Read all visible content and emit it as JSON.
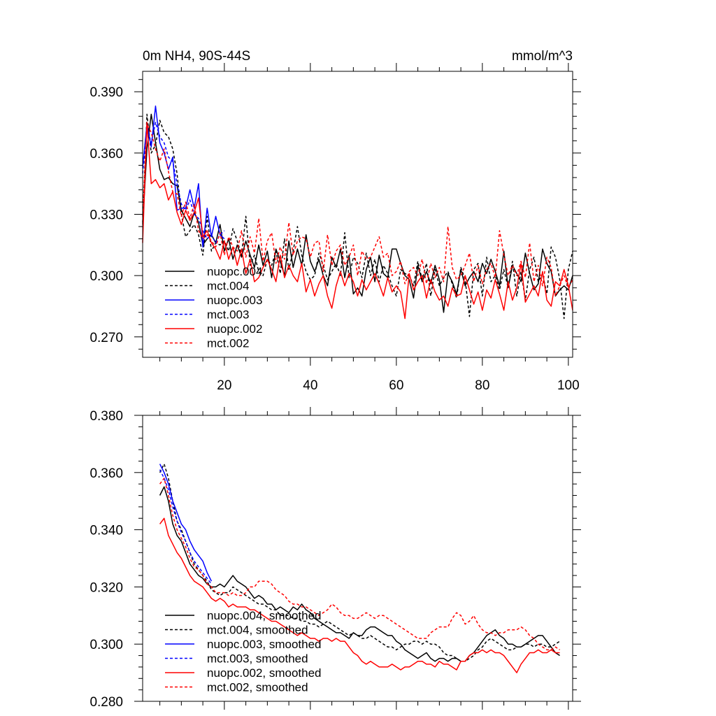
{
  "chart_data": [
    {
      "type": "line",
      "title_left": "0m NH4, 90S-44S",
      "title_right": "mmol/m^3",
      "xlim": [
        1,
        101
      ],
      "ylim": [
        0.26,
        0.4
      ],
      "xticks": [
        20,
        40,
        60,
        80,
        100
      ],
      "xtick_labels": [
        "20",
        "40",
        "60",
        "80",
        "100"
      ],
      "yticks": [
        0.27,
        0.3,
        0.33,
        0.36,
        0.39
      ],
      "ytick_labels": [
        "0.270",
        "0.300",
        "0.330",
        "0.360",
        "0.390"
      ],
      "legend_position": "bottom-left",
      "series": [
        {
          "name": "nuopc.004",
          "color": "#000000",
          "dash": "solid",
          "x_start": 1,
          "values": [
            0.325,
            0.362,
            0.379,
            0.365,
            0.352,
            0.347,
            0.348,
            0.345,
            0.344,
            0.332,
            0.328,
            0.324,
            0.331,
            0.326,
            0.315,
            0.318,
            0.32,
            0.316,
            0.325,
            0.312,
            0.318,
            0.308,
            0.315,
            0.309,
            0.317,
            0.31,
            0.304,
            0.315,
            0.305,
            0.312,
            0.299,
            0.313,
            0.307,
            0.3,
            0.317,
            0.304,
            0.313,
            0.305,
            0.32,
            0.307,
            0.302,
            0.308,
            0.3,
            0.295,
            0.309,
            0.304,
            0.313,
            0.299,
            0.31,
            0.291,
            0.294,
            0.29,
            0.303,
            0.309,
            0.297,
            0.31,
            0.301,
            0.299,
            0.313,
            0.313,
            0.306,
            0.3,
            0.298,
            0.289,
            0.305,
            0.297,
            0.302,
            0.296,
            0.305,
            0.298,
            0.282,
            0.301,
            0.297,
            0.291,
            0.303,
            0.295,
            0.299,
            0.302,
            0.297,
            0.306,
            0.301,
            0.308,
            0.302,
            0.295,
            0.312,
            0.294,
            0.305,
            0.301,
            0.297,
            0.311,
            0.301,
            0.293,
            0.296,
            0.313,
            0.306,
            0.302,
            0.29,
            0.293,
            0.295,
            0.293,
            0.3
          ]
        },
        {
          "name": "mct.004",
          "color": "#000000",
          "dash": "dashed",
          "x_start": 1,
          "values": [
            0.326,
            0.379,
            0.36,
            0.364,
            0.376,
            0.37,
            0.368,
            0.362,
            0.35,
            0.33,
            0.319,
            0.322,
            0.325,
            0.32,
            0.31,
            0.329,
            0.312,
            0.316,
            0.315,
            0.317,
            0.312,
            0.323,
            0.317,
            0.31,
            0.329,
            0.305,
            0.31,
            0.302,
            0.3,
            0.308,
            0.305,
            0.312,
            0.301,
            0.318,
            0.303,
            0.312,
            0.324,
            0.31,
            0.302,
            0.298,
            0.3,
            0.311,
            0.305,
            0.298,
            0.302,
            0.306,
            0.3,
            0.321,
            0.299,
            0.309,
            0.306,
            0.299,
            0.311,
            0.3,
            0.308,
            0.297,
            0.305,
            0.301,
            0.295,
            0.29,
            0.303,
            0.301,
            0.3,
            0.295,
            0.307,
            0.298,
            0.306,
            0.29,
            0.303,
            0.295,
            0.299,
            0.302,
            0.296,
            0.289,
            0.304,
            0.298,
            0.28,
            0.303,
            0.306,
            0.29,
            0.309,
            0.297,
            0.3,
            0.293,
            0.303,
            0.294,
            0.307,
            0.29,
            0.302,
            0.288,
            0.303,
            0.309,
            0.297,
            0.301,
            0.291,
            0.314,
            0.309,
            0.298,
            0.279,
            0.303,
            0.312
          ]
        },
        {
          "name": "nuopc.003",
          "color": "#0000ff",
          "dash": "solid",
          "x_start": 1,
          "values": [
            0.353,
            0.374,
            0.363,
            0.383,
            0.365,
            0.36,
            0.352,
            0.358,
            0.332,
            0.333,
            0.333,
            0.342,
            0.333,
            0.345,
            0.314,
            0.333,
            0.319,
            0.329,
            0.32,
            0.318
          ]
        },
        {
          "name": "mct.003",
          "color": "#0000ff",
          "dash": "dashed",
          "x_start": 1,
          "values": [
            0.35,
            0.372,
            0.365,
            0.375,
            0.368,
            0.365,
            0.358,
            0.356,
            0.345,
            0.335,
            0.332,
            0.337,
            0.33,
            0.328,
            0.322,
            0.318,
            0.32,
            0.316,
            0.32,
            0.322
          ]
        },
        {
          "name": "nuopc.002",
          "color": "#ff0000",
          "dash": "solid",
          "x_start": 1,
          "values": [
            0.316,
            0.375,
            0.345,
            0.347,
            0.343,
            0.345,
            0.337,
            0.341,
            0.331,
            0.325,
            0.332,
            0.327,
            0.331,
            0.338,
            0.319,
            0.322,
            0.316,
            0.313,
            0.308,
            0.317,
            0.308,
            0.314,
            0.305,
            0.313,
            0.301,
            0.308,
            0.297,
            0.299,
            0.304,
            0.308,
            0.303,
            0.297,
            0.31,
            0.299,
            0.305,
            0.3,
            0.297,
            0.306,
            0.292,
            0.298,
            0.29,
            0.296,
            0.3,
            0.29,
            0.284,
            0.295,
            0.302,
            0.295,
            0.301,
            0.297,
            0.29,
            0.298,
            0.293,
            0.297,
            0.301,
            0.296,
            0.29,
            0.299,
            0.292,
            0.295,
            0.292,
            0.279,
            0.301,
            0.293,
            0.297,
            0.3,
            0.289,
            0.298,
            0.292,
            0.288,
            0.29,
            0.285,
            0.294,
            0.29,
            0.291,
            0.3,
            0.293,
            0.286,
            0.292,
            0.283,
            0.293,
            0.289,
            0.298,
            0.291,
            0.283,
            0.297,
            0.288,
            0.294,
            0.306,
            0.287,
            0.291,
            0.295,
            0.29,
            0.302,
            0.288,
            0.285,
            0.297,
            0.295,
            0.303,
            0.295,
            0.283
          ]
        },
        {
          "name": "mct.002",
          "color": "#ff0000",
          "dash": "dashed",
          "x_start": 1,
          "values": [
            0.329,
            0.374,
            0.37,
            0.362,
            0.356,
            0.362,
            0.351,
            0.341,
            0.34,
            0.329,
            0.336,
            0.328,
            0.335,
            0.322,
            0.318,
            0.32,
            0.317,
            0.314,
            0.321,
            0.31,
            0.319,
            0.314,
            0.312,
            0.322,
            0.309,
            0.319,
            0.311,
            0.328,
            0.307,
            0.317,
            0.321,
            0.306,
            0.314,
            0.308,
            0.326,
            0.31,
            0.317,
            0.319,
            0.318,
            0.309,
            0.316,
            0.317,
            0.302,
            0.32,
            0.305,
            0.312,
            0.315,
            0.305,
            0.309,
            0.315,
            0.3,
            0.312,
            0.308,
            0.309,
            0.314,
            0.319,
            0.309,
            0.311,
            0.3,
            0.302,
            0.307,
            0.296,
            0.302,
            0.304,
            0.3,
            0.308,
            0.296,
            0.306,
            0.299,
            0.304,
            0.297,
            0.324,
            0.304,
            0.298,
            0.3,
            0.305,
            0.311,
            0.297,
            0.305,
            0.296,
            0.303,
            0.306,
            0.299,
            0.322,
            0.31,
            0.3,
            0.305,
            0.3,
            0.307,
            0.299,
            0.316,
            0.297,
            0.305,
            0.295,
            0.309,
            0.304,
            0.29,
            0.295,
            0.3,
            0.294,
            0.298
          ]
        }
      ]
    },
    {
      "type": "line",
      "xlim": [
        1,
        101
      ],
      "ylim": [
        0.28,
        0.38
      ],
      "xticks": [
        20,
        40,
        60,
        80,
        100
      ],
      "yticks": [
        0.28,
        0.3,
        0.32,
        0.34,
        0.36,
        0.38
      ],
      "ytick_labels": [
        "0.280",
        "0.300",
        "0.320",
        "0.340",
        "0.360",
        "0.380"
      ],
      "legend_position": "bottom-left",
      "series": [
        {
          "name": "nuopc.004, smoothed",
          "color": "#000000",
          "dash": "solid",
          "x_start": 5,
          "values": [
            0.352,
            0.355,
            0.35,
            0.342,
            0.338,
            0.336,
            0.332,
            0.328,
            0.326,
            0.324,
            0.323,
            0.321,
            0.32,
            0.32,
            0.321,
            0.32,
            0.322,
            0.324,
            0.322,
            0.321,
            0.32,
            0.318,
            0.316,
            0.317,
            0.316,
            0.314,
            0.314,
            0.312,
            0.313,
            0.312,
            0.311,
            0.313,
            0.312,
            0.314,
            0.312,
            0.311,
            0.309,
            0.308,
            0.307,
            0.306,
            0.305,
            0.304,
            0.304,
            0.303,
            0.302,
            0.304,
            0.303,
            0.303,
            0.305,
            0.306,
            0.306,
            0.305,
            0.304,
            0.303,
            0.303,
            0.301,
            0.3,
            0.298,
            0.297,
            0.296,
            0.295,
            0.296,
            0.297,
            0.295,
            0.294,
            0.295,
            0.295,
            0.294,
            0.295,
            0.295,
            0.294,
            0.294,
            0.296,
            0.297,
            0.299,
            0.301,
            0.303,
            0.304,
            0.305,
            0.303,
            0.302,
            0.3,
            0.3,
            0.299,
            0.299,
            0.3,
            0.301,
            0.302,
            0.303,
            0.303,
            0.301,
            0.299,
            0.297,
            0.296
          ]
        },
        {
          "name": "mct.004, smoothed",
          "color": "#000000",
          "dash": "dashed",
          "x_start": 5,
          "values": [
            0.36,
            0.363,
            0.358,
            0.35,
            0.343,
            0.34,
            0.336,
            0.332,
            0.328,
            0.326,
            0.324,
            0.322,
            0.319,
            0.318,
            0.317,
            0.318,
            0.318,
            0.32,
            0.319,
            0.318,
            0.317,
            0.316,
            0.315,
            0.314,
            0.314,
            0.313,
            0.312,
            0.312,
            0.31,
            0.31,
            0.31,
            0.309,
            0.309,
            0.308,
            0.308,
            0.307,
            0.307,
            0.306,
            0.307,
            0.308,
            0.307,
            0.306,
            0.305,
            0.304,
            0.303,
            0.304,
            0.303,
            0.302,
            0.302,
            0.303,
            0.302,
            0.301,
            0.3,
            0.299,
            0.299,
            0.298,
            0.299,
            0.3,
            0.3,
            0.301,
            0.301,
            0.3,
            0.301,
            0.3,
            0.3,
            0.299,
            0.297,
            0.296,
            0.296,
            0.295,
            0.294,
            0.294,
            0.295,
            0.296,
            0.298,
            0.299,
            0.301,
            0.302,
            0.301,
            0.3,
            0.299,
            0.298,
            0.298,
            0.299,
            0.299,
            0.3,
            0.3,
            0.299,
            0.3,
            0.3,
            0.299,
            0.299,
            0.3,
            0.301
          ]
        },
        {
          "name": "nuopc.003, smoothed",
          "color": "#0000ff",
          "dash": "solid",
          "x_start": 5,
          "values": [
            0.363,
            0.36,
            0.356,
            0.35,
            0.346,
            0.342,
            0.34,
            0.336,
            0.333,
            0.331,
            0.329,
            0.325,
            0.322
          ]
        },
        {
          "name": "mct.003, smoothed",
          "color": "#0000ff",
          "dash": "dashed",
          "x_start": 5,
          "values": [
            0.361,
            0.358,
            0.354,
            0.348,
            0.343,
            0.339,
            0.336,
            0.332,
            0.329,
            0.327,
            0.325,
            0.323,
            0.321
          ]
        },
        {
          "name": "nuopc.002, smoothed",
          "color": "#ff0000",
          "dash": "solid",
          "x_start": 5,
          "values": [
            0.342,
            0.344,
            0.338,
            0.335,
            0.332,
            0.33,
            0.327,
            0.324,
            0.322,
            0.321,
            0.32,
            0.318,
            0.316,
            0.315,
            0.316,
            0.315,
            0.313,
            0.314,
            0.313,
            0.313,
            0.313,
            0.312,
            0.312,
            0.311,
            0.31,
            0.309,
            0.308,
            0.308,
            0.307,
            0.306,
            0.305,
            0.304,
            0.303,
            0.304,
            0.303,
            0.302,
            0.302,
            0.301,
            0.302,
            0.302,
            0.301,
            0.302,
            0.301,
            0.301,
            0.299,
            0.297,
            0.296,
            0.294,
            0.293,
            0.294,
            0.293,
            0.292,
            0.292,
            0.292,
            0.293,
            0.292,
            0.291,
            0.292,
            0.292,
            0.293,
            0.294,
            0.294,
            0.293,
            0.293,
            0.292,
            0.294,
            0.293,
            0.293,
            0.292,
            0.291,
            0.294,
            0.294,
            0.296,
            0.297,
            0.297,
            0.298,
            0.297,
            0.298,
            0.297,
            0.297,
            0.296,
            0.294,
            0.292,
            0.29,
            0.293,
            0.295,
            0.297,
            0.297,
            0.298,
            0.297,
            0.297,
            0.298,
            0.297,
            0.297
          ]
        },
        {
          "name": "mct.002, smoothed",
          "color": "#ff0000",
          "dash": "dashed",
          "x_start": 5,
          "values": [
            0.356,
            0.358,
            0.352,
            0.345,
            0.34,
            0.337,
            0.334,
            0.33,
            0.327,
            0.326,
            0.324,
            0.321,
            0.32,
            0.318,
            0.318,
            0.318,
            0.317,
            0.318,
            0.317,
            0.317,
            0.318,
            0.32,
            0.32,
            0.322,
            0.322,
            0.322,
            0.321,
            0.319,
            0.318,
            0.317,
            0.315,
            0.314,
            0.314,
            0.313,
            0.313,
            0.312,
            0.311,
            0.31,
            0.311,
            0.312,
            0.314,
            0.313,
            0.311,
            0.31,
            0.31,
            0.309,
            0.309,
            0.31,
            0.311,
            0.31,
            0.309,
            0.31,
            0.31,
            0.309,
            0.308,
            0.307,
            0.306,
            0.305,
            0.304,
            0.303,
            0.302,
            0.302,
            0.302,
            0.304,
            0.305,
            0.306,
            0.306,
            0.306,
            0.309,
            0.311,
            0.31,
            0.307,
            0.308,
            0.31,
            0.307,
            0.305,
            0.304,
            0.304,
            0.303,
            0.304,
            0.304,
            0.305,
            0.305,
            0.305,
            0.306,
            0.305,
            0.303,
            0.302,
            0.3,
            0.299,
            0.298,
            0.298,
            0.299,
            0.298
          ]
        }
      ]
    }
  ]
}
